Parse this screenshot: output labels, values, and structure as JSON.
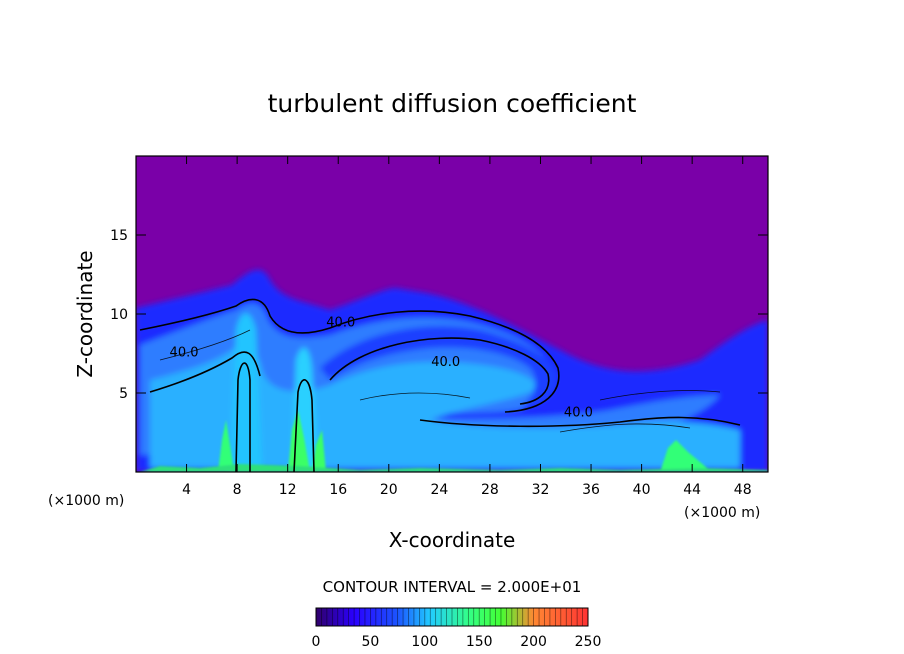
{
  "chart_data": {
    "type": "heatmap",
    "title": "turbulent diffusion coefficient",
    "xlabel": "X-coordinate",
    "ylabel": "Z-coordinate",
    "x_unit_label_left": "(×1000 m)",
    "x_unit_label_right": "(×1000 m)",
    "xlim": [
      0,
      50
    ],
    "ylim": [
      0,
      20
    ],
    "x_ticks": [
      4,
      8,
      12,
      16,
      20,
      24,
      28,
      32,
      36,
      40,
      44,
      48
    ],
    "y_ticks": [
      5,
      10,
      15
    ],
    "x_tick_labels": [
      "4",
      "8",
      "12",
      "16",
      "20",
      "24",
      "28",
      "32",
      "36",
      "40",
      "44",
      "48"
    ],
    "y_tick_labels": [
      "5",
      "10",
      "15"
    ],
    "contour_labels": [
      {
        "text": "40.0",
        "x": 3.8,
        "y": 7.3
      },
      {
        "text": "40.0",
        "x": 16.2,
        "y": 9.2
      },
      {
        "text": "40.0",
        "x": 24.5,
        "y": 6.7
      },
      {
        "text": "40.0",
        "x": 35.0,
        "y": 3.5
      }
    ],
    "contour_interval_text": "CONTOUR INTERVAL = 2.000E+01",
    "colorbar": {
      "min": 0,
      "max": 250,
      "ticks": [
        0,
        50,
        100,
        150,
        200,
        250
      ],
      "tick_labels": [
        "0",
        "50",
        "100",
        "150",
        "200",
        "250"
      ]
    },
    "colors": {
      "background": "#7a00a8",
      "low": "#1a1aff",
      "mid": "#2bb6ff",
      "high": "#33ff66"
    }
  }
}
